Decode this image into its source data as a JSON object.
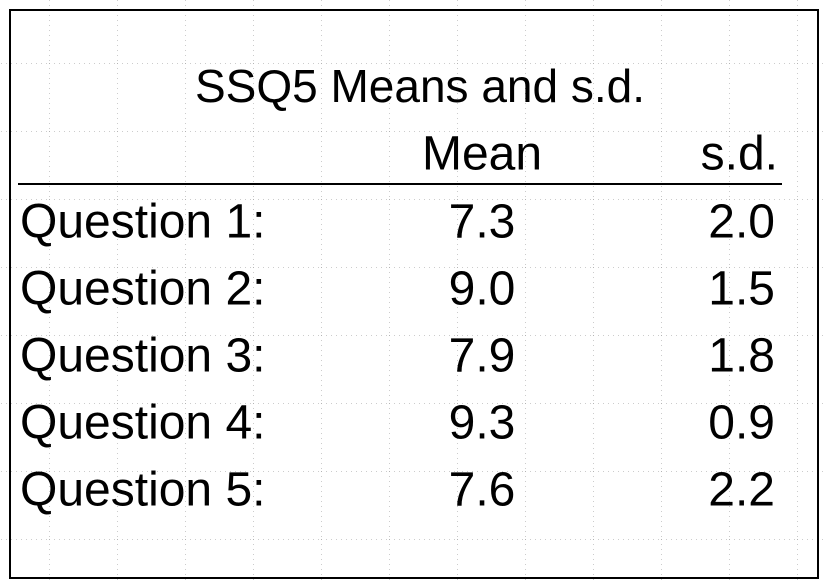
{
  "header": {
    "title": "SSQ5 Means and s.d."
  },
  "table": {
    "columns": [
      "Mean",
      "s.d."
    ],
    "rows": [
      [
        "Question 1:",
        "7.3",
        "2.0"
      ],
      [
        "Question 2:",
        "9.0",
        "1.5"
      ],
      [
        "Question 3:",
        "7.9",
        "1.8"
      ],
      [
        "Question 4:",
        "9.3",
        "0.9"
      ],
      [
        "Question 5:",
        "7.6",
        "2.2"
      ]
    ]
  }
}
